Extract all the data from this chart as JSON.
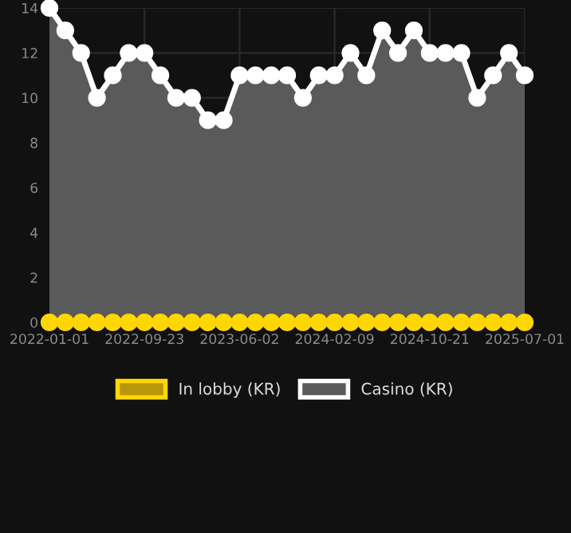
{
  "chart_data": {
    "type": "line",
    "categories": [
      "2022-01-01",
      null,
      null,
      null,
      null,
      null,
      "2022-09-23",
      null,
      null,
      null,
      null,
      null,
      "2023-06-02",
      null,
      null,
      null,
      null,
      null,
      "2024-02-09",
      null,
      null,
      null,
      null,
      null,
      "2024-10-21",
      null,
      null,
      null,
      null,
      null,
      "2025-07-01"
    ],
    "series": [
      {
        "name": "In lobby (KR)",
        "color": "#ffd700",
        "values": [
          0,
          0,
          0,
          0,
          0,
          0,
          0,
          0,
          0,
          0,
          0,
          0,
          0,
          0,
          0,
          0,
          0,
          0,
          0,
          0,
          0,
          0,
          0,
          0,
          0,
          0,
          0,
          0,
          0,
          0,
          0
        ]
      },
      {
        "name": "Casino (KR)",
        "type": "area",
        "color": "#ffffff",
        "values": [
          14,
          13,
          12,
          10,
          11,
          12,
          12,
          11,
          10,
          10,
          9,
          9,
          11,
          11,
          11,
          11,
          10,
          11,
          11,
          12,
          11,
          13,
          12,
          13,
          12,
          12,
          12,
          10,
          11,
          12,
          11
        ]
      }
    ],
    "ylim": [
      0,
      14
    ],
    "yticks": [
      0,
      2,
      4,
      6,
      8,
      10,
      12,
      14
    ],
    "grid": true,
    "legend": "bottom",
    "marker": "circle",
    "line_style": "solid"
  }
}
